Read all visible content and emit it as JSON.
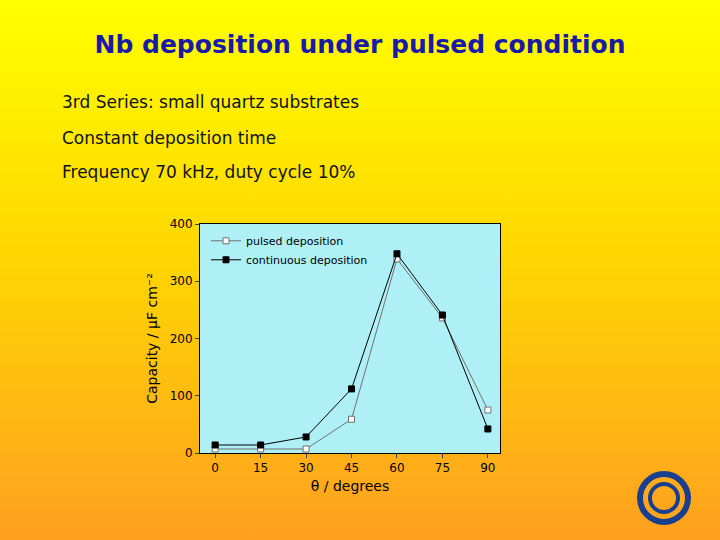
{
  "slide": {
    "title": "Nb deposition under pulsed condition",
    "lines": [
      "3rd Series: small quartz substrates",
      "Constant deposition time",
      "Frequency 70 kHz, duty cycle 10%"
    ]
  },
  "chart_data": {
    "type": "line",
    "x": [
      0,
      15,
      30,
      45,
      60,
      75,
      90
    ],
    "series": [
      {
        "name": "pulsed deposition",
        "color": "#707070",
        "marker": "open square",
        "values": [
          7,
          7,
          7,
          59,
          339,
          236,
          75
        ]
      },
      {
        "name": "continuous deposition",
        "color": "#000000",
        "marker": "square",
        "values": [
          14,
          14,
          28,
          112,
          348,
          241,
          42
        ]
      }
    ],
    "x_label": "θ / degrees",
    "y_label": "Capacity / μF cm⁻²",
    "xlim": [
      -5,
      94
    ],
    "xticks": [
      0,
      15,
      30,
      45,
      60,
      75,
      90
    ],
    "ylim": [
      0,
      400
    ],
    "yticks": [
      0,
      100,
      200,
      300,
      400
    ],
    "legend": "upper left",
    "grid": false
  }
}
